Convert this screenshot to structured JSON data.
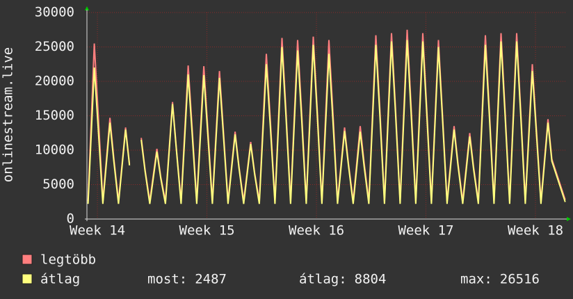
{
  "chart_data": {
    "type": "line",
    "y_label": "onlinestream.live",
    "x": [
      -0.6,
      -0.2,
      0.05,
      0.35,
      0.8,
      1.05,
      1.35,
      1.8,
      2.05,
      2.35,
      2.8,
      3.05,
      3.35,
      3.8,
      4.05,
      4.35,
      4.8,
      5.05,
      5.35,
      5.8,
      6.05,
      6.35,
      6.8,
      7.05,
      7.35,
      7.8,
      8.05,
      8.35,
      8.8,
      9.05,
      9.35,
      9.8,
      10.05,
      10.35,
      10.8,
      11.05,
      11.35,
      11.8,
      12.05,
      12.35,
      12.8,
      13.05,
      13.35,
      13.8,
      14.05,
      14.35,
      14.8,
      15.05,
      15.35,
      15.8,
      16.05,
      16.35,
      16.8,
      17.05,
      17.35,
      17.8,
      18.05,
      18.35,
      18.8,
      19.05,
      19.35,
      19.8,
      20.05,
      20.35,
      20.8,
      21.05,
      21.35,
      21.8,
      22.05,
      22.35,
      22.8,
      23.05,
      23.35,
      23.8,
      24.05,
      24.35,
      24.8,
      25.05,
      25.35,
      25.8,
      26.05,
      26.35,
      26.8,
      27.05,
      27.35,
      27.8,
      28.05,
      28.35,
      28.8,
      29.05,
      29.9
    ],
    "series": [
      {
        "name": "legtöbb",
        "color": "#ff7f7f",
        "values": [
          2600,
          25500,
          15300,
          2600,
          14700,
          8800,
          2600,
          13300,
          8000,
          null,
          11800,
          7100,
          2600,
          10200,
          6100,
          2600,
          17000,
          10200,
          2600,
          22300,
          13400,
          2600,
          22200,
          13300,
          2600,
          21500,
          12900,
          2600,
          12700,
          7600,
          2600,
          11200,
          6700,
          2600,
          24000,
          14400,
          2600,
          26300,
          15800,
          2600,
          26000,
          15600,
          2600,
          26500,
          15900,
          2600,
          26000,
          15600,
          2600,
          13300,
          8000,
          2600,
          13500,
          8100,
          2600,
          26700,
          16000,
          2600,
          27000,
          16200,
          2600,
          27500,
          16500,
          2600,
          27000,
          16200,
          2600,
          26000,
          15600,
          2600,
          13500,
          8100,
          2600,
          12500,
          7500,
          2600,
          26700,
          16000,
          2600,
          27000,
          16200,
          2600,
          27000,
          16200,
          2600,
          22500,
          13500,
          2600,
          14500,
          8700,
          2800
        ]
      },
      {
        "name": "átlag",
        "color": "#ffff7f",
        "values": [
          2200,
          22000,
          13200,
          2200,
          14000,
          8400,
          2200,
          13000,
          7800,
          null,
          11500,
          6900,
          2200,
          9800,
          5900,
          2200,
          16700,
          10000,
          2200,
          21000,
          12600,
          2200,
          20900,
          12500,
          2200,
          20500,
          12300,
          2200,
          12300,
          7400,
          2200,
          10900,
          6500,
          2200,
          22500,
          13500,
          2200,
          25000,
          15000,
          2200,
          24500,
          14700,
          2200,
          25300,
          15200,
          2200,
          24000,
          14400,
          2200,
          12800,
          7700,
          2200,
          12700,
          7600,
          2200,
          25300,
          15200,
          2200,
          25800,
          15500,
          2200,
          26000,
          15600,
          2200,
          25800,
          15500,
          2200,
          25000,
          15000,
          2200,
          13000,
          7800,
          2200,
          12000,
          7200,
          2200,
          25300,
          15200,
          2200,
          25800,
          15500,
          2200,
          25800,
          15500,
          2200,
          21500,
          12900,
          2200,
          14000,
          8400,
          2487
        ]
      }
    ],
    "stats": [
      {
        "label": "most:",
        "value": 2487
      },
      {
        "label": "átlag:",
        "value": 8804
      },
      {
        "label": "max:",
        "value": 26516
      }
    ],
    "xlim": [
      -0.67,
      30
    ],
    "xticks": [
      {
        "value": 0,
        "label": "Week 14"
      },
      {
        "value": 7,
        "label": "Week 15"
      },
      {
        "value": 14,
        "label": "Week 16"
      },
      {
        "value": 21,
        "label": "Week 17"
      },
      {
        "value": 28,
        "label": "Week 18"
      }
    ],
    "ylim": [
      0,
      30000
    ],
    "yticks": [
      0,
      5000,
      10000,
      15000,
      20000,
      25000,
      30000
    ],
    "grid": true
  }
}
